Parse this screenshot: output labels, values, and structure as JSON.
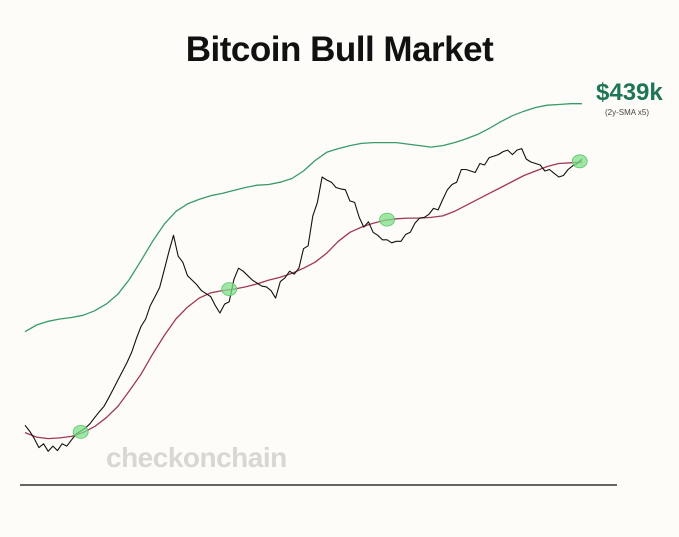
{
  "chart_data": {
    "type": "line",
    "title": "Bitcoin Bull Market",
    "xlabel": "",
    "ylabel": "",
    "grid": false,
    "series": [
      {
        "name": "",
        "role": "price",
        "color": "#111111",
        "x": [
          0,
          10,
          20,
          30,
          40,
          50,
          60,
          70,
          80,
          90,
          100,
          110,
          120,
          130,
          140,
          150,
          160,
          170,
          180,
          190,
          200,
          210,
          220,
          230,
          240,
          250,
          260,
          270,
          280,
          290,
          300,
          310,
          320,
          330,
          340,
          350,
          360,
          370,
          380,
          390,
          400,
          410,
          420,
          430,
          440,
          450,
          460,
          470,
          480,
          490,
          500,
          510,
          520,
          530,
          540,
          550,
          560,
          570,
          580,
          590,
          600,
          610,
          620,
          630,
          640,
          650,
          660,
          670,
          680,
          690,
          700,
          710,
          720,
          730,
          740,
          750,
          760,
          770,
          780,
          790,
          800,
          810,
          820,
          830,
          840,
          850,
          860,
          870,
          880,
          890,
          900,
          910,
          920,
          930,
          940,
          950,
          960,
          970,
          980,
          990,
          1000,
          1010,
          1020,
          1030,
          1040,
          1050,
          1060,
          1070,
          1080,
          1090,
          1100,
          1110,
          1120,
          1130,
          1140,
          1150,
          1160,
          1170,
          1180,
          1190,
          1200
        ],
        "y": [
          3.3,
          3.22,
          3.12,
          3.0,
          3.05,
          2.95,
          3.02,
          2.96,
          3.05,
          3.02,
          3.1,
          3.18,
          3.22,
          3.26,
          3.32,
          3.4,
          3.48,
          3.55,
          3.66,
          3.78,
          3.9,
          4.02,
          4.14,
          4.28,
          4.46,
          4.62,
          4.72,
          4.9,
          5.02,
          5.14,
          5.38,
          5.62,
          5.84,
          5.56,
          5.48,
          5.3,
          5.24,
          5.18,
          5.1,
          5.06,
          5.02,
          4.9,
          4.8,
          4.92,
          4.95,
          5.25,
          5.4,
          5.36,
          5.3,
          5.24,
          5.2,
          5.16,
          5.15,
          5.1,
          5.0,
          5.22,
          5.27,
          5.36,
          5.32,
          5.4,
          5.66,
          5.7,
          6.1,
          6.28,
          6.62,
          6.58,
          6.55,
          6.48,
          6.46,
          6.45,
          6.3,
          6.28,
          6.08,
          5.95,
          6.02,
          5.88,
          5.84,
          5.78,
          5.78,
          5.74,
          5.76,
          5.76,
          5.85,
          5.88,
          6.0,
          6.07,
          6.08,
          6.12,
          6.2,
          6.18,
          6.32,
          6.45,
          6.52,
          6.55,
          6.72,
          6.72,
          6.7,
          6.68,
          6.8,
          6.78,
          6.88,
          6.9,
          6.92,
          6.96,
          6.98,
          6.92,
          6.98,
          7.0,
          6.86,
          6.82,
          6.8,
          6.78,
          6.7,
          6.72,
          6.67,
          6.62,
          6.64,
          6.72,
          6.77,
          6.8,
          6.86
        ]
      },
      {
        "name": "",
        "role": "2y-sma",
        "color": "#a03858",
        "x": [
          0,
          25,
          50,
          75,
          100,
          125,
          150,
          175,
          200,
          225,
          250,
          275,
          300,
          325,
          350,
          375,
          400,
          425,
          450,
          475,
          500,
          525,
          550,
          575,
          600,
          625,
          650,
          675,
          700,
          725,
          750,
          775,
          800,
          825,
          850,
          875,
          900,
          925,
          950,
          975,
          1000,
          1025,
          1050,
          1075,
          1100,
          1125,
          1150,
          1175,
          1200
        ],
        "y": [
          3.2,
          3.14,
          3.12,
          3.13,
          3.15,
          3.2,
          3.28,
          3.4,
          3.55,
          3.76,
          3.98,
          4.25,
          4.5,
          4.72,
          4.88,
          5.0,
          5.07,
          5.1,
          5.12,
          5.15,
          5.19,
          5.24,
          5.28,
          5.33,
          5.4,
          5.48,
          5.6,
          5.76,
          5.88,
          5.95,
          6.0,
          6.04,
          6.06,
          6.07,
          6.07,
          6.08,
          6.1,
          6.16,
          6.24,
          6.32,
          6.4,
          6.48,
          6.56,
          6.64,
          6.7,
          6.76,
          6.8,
          6.81,
          6.82
        ]
      },
      {
        "name": "",
        "role": "upper-band",
        "color": "#3a9a6a",
        "x": [
          0,
          25,
          50,
          75,
          100,
          125,
          150,
          175,
          200,
          225,
          250,
          275,
          300,
          325,
          350,
          375,
          400,
          425,
          450,
          475,
          500,
          525,
          550,
          575,
          600,
          625,
          650,
          675,
          700,
          725,
          750,
          775,
          800,
          825,
          850,
          875,
          900,
          925,
          950,
          975,
          1000,
          1025,
          1050,
          1075,
          1100,
          1125,
          1150,
          1175,
          1200
        ],
        "y": [
          4.55,
          4.64,
          4.69,
          4.72,
          4.74,
          4.77,
          4.83,
          4.92,
          5.05,
          5.25,
          5.5,
          5.76,
          5.99,
          6.16,
          6.26,
          6.32,
          6.37,
          6.4,
          6.44,
          6.48,
          6.51,
          6.52,
          6.55,
          6.6,
          6.7,
          6.84,
          6.95,
          7.0,
          7.04,
          7.07,
          7.08,
          7.08,
          7.08,
          7.06,
          7.04,
          7.02,
          7.04,
          7.08,
          7.13,
          7.19,
          7.27,
          7.36,
          7.44,
          7.5,
          7.55,
          7.58,
          7.59,
          7.6,
          7.6
        ]
      }
    ],
    "annotations": [
      {
        "text": "$439k",
        "series": "upper-band"
      },
      {
        "text": "(2y-SMA x5)",
        "series": "upper-band"
      }
    ],
    "markers": [
      {
        "x": 120,
        "y": 3.21
      },
      {
        "x": 440,
        "y": 5.12
      },
      {
        "x": 780,
        "y": 6.05
      },
      {
        "x": 1195,
        "y": 6.83
      }
    ],
    "watermark": "checkonchain"
  }
}
